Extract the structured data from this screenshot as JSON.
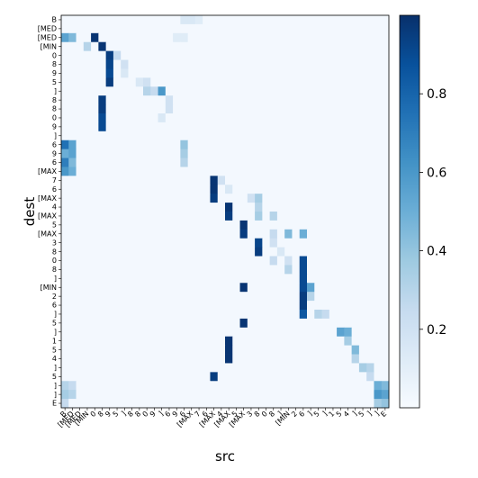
{
  "chart_data": {
    "type": "heatmap",
    "xlabel": "src",
    "ylabel": "dest",
    "row_labels": [
      "B",
      "[MED",
      "[MED",
      "[MIN",
      "0",
      "8",
      "9",
      "5",
      "]",
      "8",
      "8",
      "0",
      "9",
      "]",
      "6",
      "9",
      "6",
      "[MAX",
      "7",
      "6",
      "[MAX",
      "4",
      "[MAX",
      "5",
      "[MAX",
      "3",
      "8",
      "0",
      "8",
      "]",
      "[MIN",
      "2",
      "6",
      "]",
      "5",
      "]",
      "1",
      "5",
      "4",
      "]",
      "5",
      "]",
      "]",
      "E"
    ],
    "col_labels": [
      "B",
      "[MED",
      "[MED",
      "[MIN",
      "0",
      "8",
      "9",
      "5",
      "]",
      "8",
      "8",
      "0",
      "9",
      "]",
      "6",
      "9",
      "6",
      "[MAX",
      "7",
      "6",
      "[MAX",
      "4",
      "[MAX",
      "5",
      "[MAX",
      "3",
      "8",
      "0",
      "8",
      "]",
      "[MIN",
      "2",
      "6",
      "]",
      "5",
      "]",
      "1",
      "5",
      "4",
      "]",
      "5",
      "]",
      "]",
      "E"
    ],
    "colorbar": {
      "min": 0,
      "max": 1,
      "ticks": [
        0.2,
        0.4,
        0.6,
        0.8
      ],
      "tick_labels": [
        "0.2",
        "0.4",
        "0.6",
        "0.8"
      ]
    },
    "colormap": "Blues",
    "values_hot": [
      [
        2,
        4,
        0.98
      ],
      [
        3,
        5,
        0.98
      ],
      [
        4,
        6,
        0.95
      ],
      [
        5,
        6,
        0.92
      ],
      [
        6,
        6,
        0.9
      ],
      [
        7,
        6,
        0.95
      ],
      [
        9,
        5,
        0.95
      ],
      [
        10,
        5,
        0.95
      ],
      [
        11,
        5,
        0.9
      ],
      [
        12,
        5,
        0.9
      ],
      [
        18,
        20,
        0.98
      ],
      [
        19,
        20,
        0.98
      ],
      [
        20,
        20,
        0.95
      ],
      [
        21,
        22,
        0.98
      ],
      [
        22,
        22,
        0.95
      ],
      [
        23,
        24,
        0.98
      ],
      [
        24,
        24,
        0.95
      ],
      [
        25,
        26,
        0.92
      ],
      [
        26,
        26,
        0.95
      ],
      [
        27,
        32,
        0.9
      ],
      [
        28,
        32,
        0.9
      ],
      [
        29,
        32,
        0.9
      ],
      [
        30,
        32,
        0.9
      ],
      [
        31,
        32,
        0.95
      ],
      [
        32,
        32,
        0.95
      ],
      [
        33,
        32,
        0.85
      ],
      [
        30,
        24,
        0.98
      ],
      [
        34,
        24,
        0.98
      ],
      [
        36,
        22,
        0.98
      ],
      [
        37,
        22,
        0.98
      ],
      [
        38,
        22,
        0.98
      ],
      [
        40,
        20,
        0.95
      ]
    ],
    "values_mid": [
      [
        2,
        0,
        0.55
      ],
      [
        2,
        1,
        0.45
      ],
      [
        3,
        3,
        0.3
      ],
      [
        4,
        7,
        0.25
      ],
      [
        8,
        13,
        0.6
      ],
      [
        8,
        11,
        0.3
      ],
      [
        8,
        12,
        0.25
      ],
      [
        14,
        0,
        0.75
      ],
      [
        14,
        1,
        0.55
      ],
      [
        15,
        0,
        0.5
      ],
      [
        15,
        1,
        0.55
      ],
      [
        16,
        0,
        0.7
      ],
      [
        16,
        1,
        0.45
      ],
      [
        17,
        0,
        0.6
      ],
      [
        17,
        1,
        0.5
      ],
      [
        14,
        16,
        0.4
      ],
      [
        15,
        16,
        0.35
      ],
      [
        16,
        16,
        0.3
      ],
      [
        20,
        26,
        0.35
      ],
      [
        21,
        26,
        0.3
      ],
      [
        22,
        26,
        0.35
      ],
      [
        22,
        28,
        0.3
      ],
      [
        24,
        28,
        0.25
      ],
      [
        24,
        30,
        0.45
      ],
      [
        24,
        32,
        0.5
      ],
      [
        27,
        28,
        0.25
      ],
      [
        28,
        30,
        0.3
      ],
      [
        30,
        33,
        0.55
      ],
      [
        31,
        33,
        0.3
      ],
      [
        33,
        34,
        0.3
      ],
      [
        33,
        35,
        0.25
      ],
      [
        35,
        37,
        0.55
      ],
      [
        35,
        38,
        0.5
      ],
      [
        36,
        38,
        0.35
      ],
      [
        37,
        39,
        0.45
      ],
      [
        38,
        39,
        0.3
      ],
      [
        39,
        40,
        0.35
      ],
      [
        39,
        41,
        0.3
      ],
      [
        40,
        41,
        0.25
      ],
      [
        41,
        42,
        0.5
      ],
      [
        41,
        43,
        0.45
      ],
      [
        42,
        42,
        0.6
      ],
      [
        42,
        43,
        0.55
      ],
      [
        43,
        42,
        0.35
      ],
      [
        43,
        43,
        0.4
      ],
      [
        41,
        0,
        0.3
      ],
      [
        41,
        1,
        0.25
      ],
      [
        42,
        0,
        0.35
      ],
      [
        42,
        1,
        0.3
      ],
      [
        43,
        0,
        0.25
      ],
      [
        0,
        16,
        0.15
      ],
      [
        0,
        17,
        0.15
      ],
      [
        0,
        18,
        0.12
      ],
      [
        2,
        15,
        0.12
      ],
      [
        2,
        16,
        0.12
      ],
      [
        5,
        8,
        0.2
      ],
      [
        6,
        8,
        0.15
      ],
      [
        7,
        10,
        0.15
      ],
      [
        7,
        11,
        0.2
      ],
      [
        9,
        14,
        0.2
      ],
      [
        10,
        14,
        0.2
      ],
      [
        11,
        13,
        0.15
      ],
      [
        18,
        21,
        0.2
      ],
      [
        19,
        22,
        0.15
      ],
      [
        20,
        25,
        0.2
      ],
      [
        25,
        28,
        0.2
      ],
      [
        26,
        29,
        0.15
      ],
      [
        27,
        30,
        0.2
      ]
    ]
  }
}
